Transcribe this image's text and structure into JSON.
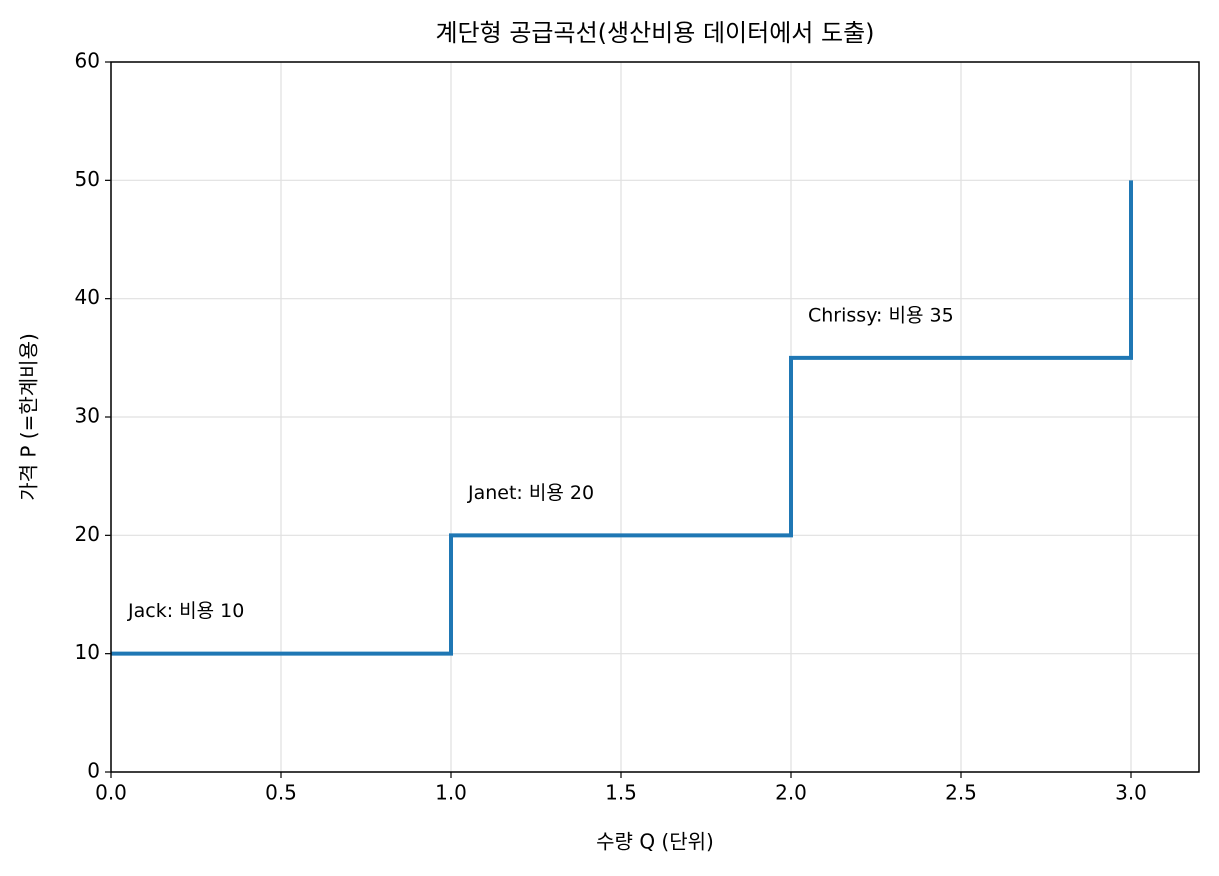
{
  "chart_data": {
    "type": "step",
    "where": "post",
    "title": "계단형 공급곡선(생산비용 데이터에서 도출)",
    "x_label": "수량 Q (단위)",
    "y_label": "가격 P (=한계비용)",
    "x": [
      0,
      1,
      2,
      3
    ],
    "series": [
      {
        "color": "#1f77b4",
        "values": [
          10,
          20,
          35,
          50
        ]
      }
    ],
    "annotations": [
      "Jack: 비용 10",
      "Janet: 비용 20",
      "Chrissy: 비용 35"
    ],
    "xlim": [
      0,
      3.2
    ],
    "xticks": [
      {
        "value": 0,
        "label": "0.0"
      },
      {
        "value": 0.5,
        "label": "0.5"
      },
      {
        "value": 1,
        "label": "1.0"
      },
      {
        "value": 1.5,
        "label": "1.5"
      },
      {
        "value": 2,
        "label": "2.0"
      },
      {
        "value": 2.5,
        "label": "2.5"
      },
      {
        "value": 3,
        "label": "3.0"
      }
    ],
    "ylim": [
      0,
      60
    ],
    "yticks": [
      0,
      10,
      20,
      30,
      40,
      50,
      60
    ],
    "grid": true
  }
}
